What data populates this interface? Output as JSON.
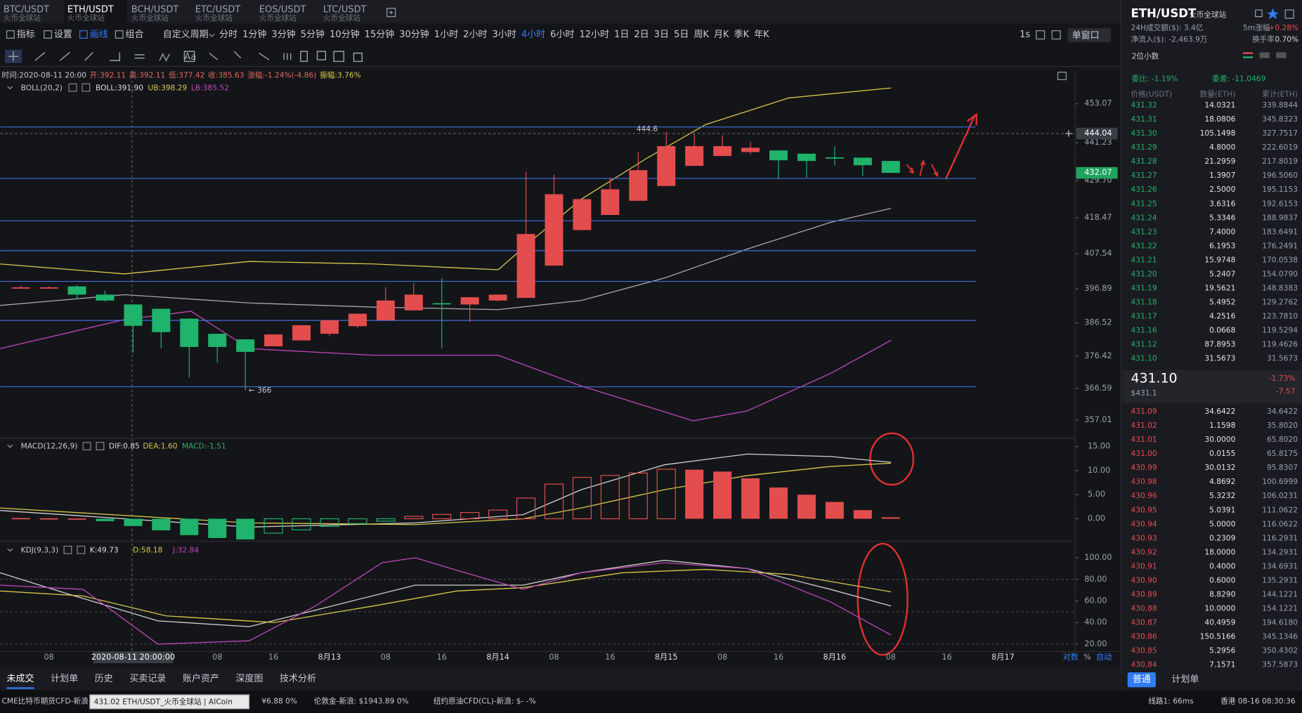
{
  "tabs": [
    {
      "pair": "BTC/USDT",
      "exchange": "火币全球站"
    },
    {
      "pair": "ETH/USDT",
      "exchange": "火币全球站"
    },
    {
      "pair": "BCH/USDT",
      "exchange": "火币全球站"
    },
    {
      "pair": "ETC/USDT",
      "exchange": "火币全球站"
    },
    {
      "pair": "EOS/USDT",
      "exchange": "火币全球站"
    },
    {
      "pair": "LTC/USDT",
      "exchange": "火币全球站"
    }
  ],
  "active_tab": 1,
  "toolbar": {
    "tools": [
      "指标",
      "设置",
      "画线",
      "组合"
    ],
    "custom": "自定义周期",
    "periods": [
      "分时",
      "1分钟",
      "3分钟",
      "5分钟",
      "10分钟",
      "15分钟",
      "30分钟",
      "1小时",
      "2小时",
      "3小时",
      "4小时",
      "6小时",
      "12小时",
      "1日",
      "2日",
      "3日",
      "5日",
      "周K",
      "月K",
      "季K",
      "年K"
    ],
    "active_period": 10,
    "refresh": "1s",
    "window": "单窗口"
  },
  "info_line": [
    "时间:2020-08-11 20:00",
    "开:392.11",
    "高:392.11",
    "低:377.42",
    "收:385.63",
    "涨幅:-1.24%(-4.86)",
    "振幅:3.76%"
  ],
  "boll": {
    "name": "BOLL(20,2)",
    "boll": "BOLL:391.90",
    "ub": "UB:398.29",
    "lb": "LB:385.52"
  },
  "chart": {
    "type": "candlestick",
    "candles": [
      [
        397.2,
        397.8,
        396.8,
        397.3
      ],
      [
        397.2,
        397.6,
        396.9,
        397.3
      ],
      [
        397.6,
        398.0,
        394.0,
        395.1
      ],
      [
        395.1,
        396.3,
        393.0,
        393.3
      ],
      [
        392.11,
        392.11,
        377.42,
        385.63
      ],
      [
        390.8,
        390.8,
        378.7,
        383.7
      ],
      [
        387.8,
        387.8,
        369.9,
        379.2
      ],
      [
        383.2,
        383.2,
        374.4,
        379.2
      ],
      [
        381.5,
        381.5,
        366,
        377.7
      ],
      [
        379.4,
        383.0,
        379.4,
        383.0
      ],
      [
        381.2,
        385.8,
        381.2,
        385.8
      ],
      [
        383.2,
        387.3,
        382.5,
        387.3
      ],
      [
        385.5,
        389.3,
        385.0,
        389.3
      ],
      [
        387.3,
        397.3,
        387.3,
        393.3
      ],
      [
        390.3,
        398.6,
        390.3,
        395.1
      ],
      [
        392.5,
        400.1,
        378.7,
        392.3
      ],
      [
        392.1,
        394.3,
        386.8,
        394.3
      ],
      [
        393.3,
        395.1,
        393.0,
        395.1
      ],
      [
        394.1,
        432.4,
        394.1,
        413.5
      ],
      [
        403.9,
        431.6,
        403.9,
        425.6
      ],
      [
        414.7,
        424.1,
        414.7,
        424.1
      ],
      [
        419.3,
        430.6,
        419.3,
        427.1
      ],
      [
        423.6,
        438.4,
        423.6,
        432.9
      ],
      [
        428.1,
        444.6,
        428.1,
        440.2
      ],
      [
        434.2,
        444.2,
        434.2,
        440.2
      ],
      [
        437.2,
        443.5,
        437.2,
        440.2
      ],
      [
        438.4,
        441.5,
        437.7,
        439.7
      ],
      [
        438.9,
        438.9,
        430.1,
        435.9
      ],
      [
        437.9,
        437.9,
        430.6,
        435.7
      ],
      [
        436.8,
        440.2,
        434.4,
        436.7
      ],
      [
        436.7,
        436.7,
        431.1,
        434.4
      ],
      [
        435.7,
        435.7,
        432.1,
        432.07
      ]
    ],
    "categories": [
      null,
      "08",
      null,
      null,
      "2020-08-11 20:00:00",
      null,
      null,
      "08",
      null,
      "16",
      null,
      "8月13",
      null,
      "08",
      null,
      "16",
      null,
      "8月14",
      null,
      "08",
      null,
      "16",
      null,
      "8月15",
      null,
      "08",
      null,
      "16",
      null,
      "8月16",
      null,
      "08",
      null,
      "16",
      null,
      "8月17"
    ],
    "crosshair_index": 4,
    "ylim": [
      351.46,
      463.16
    ],
    "yticks": [
      453.07,
      441.23,
      {
        "value": 429.7,
        "label": "429.70"
      },
      418.47,
      407.54,
      396.89,
      386.52,
      376.42,
      366.59,
      357.01
    ],
    "price_marks": [
      {
        "value": 444.04,
        "color": "#3a3d44"
      },
      {
        "value": 432.07,
        "color": "#1fa35f"
      }
    ],
    "horizontal_lines": [
      446.01,
      430.38,
      417.52,
      408.44,
      399.12,
      387.26,
      367.1
    ],
    "annotations": [
      {
        "value": 444.6,
        "label": "444.6"
      },
      {
        "value": 366,
        "label": "← 366"
      }
    ],
    "axis_options": [
      "对数",
      "%",
      "自动"
    ]
  },
  "macd": {
    "name": "MACD(12,26,9)",
    "dif": "DIF:0.85",
    "dea": "DEA:1.60",
    "macd": "MACD:-1.51",
    "ylim": [
      -4.66,
      16.38
    ],
    "yticks": [
      {
        "value": 15,
        "label": "15.00"
      },
      {
        "value": 10,
        "label": "10.00"
      },
      {
        "value": 5,
        "label": "5.00"
      },
      {
        "value": 0,
        "label": "0.00"
      }
    ],
    "histogram": [
      0.15,
      0.1,
      0.05,
      -0.5,
      -1.51,
      -2.4,
      -3.4,
      -4.0,
      -4.3,
      -3.0,
      -2.3,
      -1.6,
      -1.0,
      -0.5,
      0.5,
      0.9,
      1.3,
      1.8,
      4.3,
      7.2,
      8.6,
      9.0,
      9.5,
      10.3,
      10.2,
      9.8,
      8.4,
      6.5,
      5.0,
      3.5,
      1.8,
      0.3
    ]
  },
  "kdj": {
    "name": "KDJ(9,3,3)",
    "k": "K:49.73",
    "d": "D:58.18",
    "j": "J:32.84",
    "ylim": [
      13.1,
      113.1
    ],
    "yticks": [
      {
        "value": 100,
        "label": "100.00"
      },
      {
        "value": 80,
        "label": "80.00"
      },
      {
        "value": 60,
        "label": "60.00"
      },
      {
        "value": 40,
        "label": "40.00"
      },
      {
        "value": 20,
        "label": "20.00"
      }
    ]
  },
  "sidebar": {
    "pair": "ETH/USDT",
    "exchange": "火币全球站",
    "volume": "24H成交额($): 3.4亿",
    "change_label": "5m涨幅",
    "change": "+0.28%",
    "inflow": "净流入($): -2,463.9万",
    "turnover_label": "换手率",
    "turnover": "0.70%",
    "decimals": "2位小数",
    "ratio": "委比: -1.19%",
    "diff": "委差: -11.0469",
    "headers": [
      "价格(USDT)",
      "数量(ETH)",
      "累计(ETH)"
    ],
    "upper_rows": [
      [
        "431.32",
        "14.0321",
        "339.8844"
      ],
      [
        "431.31",
        "18.0806",
        "345.8323"
      ],
      [
        "431.30",
        "105.1498",
        "327.7517"
      ],
      [
        "431.29",
        "4.8000",
        "222.6019"
      ],
      [
        "431.28",
        "21.2959",
        "217.8019"
      ],
      [
        "431.27",
        "1.3907",
        "196.5060"
      ],
      [
        "431.26",
        "2.5000",
        "195.1153"
      ],
      [
        "431.25",
        "3.6316",
        "192.6153"
      ],
      [
        "431.24",
        "5.3346",
        "188.9837"
      ],
      [
        "431.23",
        "7.4000",
        "183.6491"
      ],
      [
        "431.22",
        "6.1953",
        "176.2491"
      ],
      [
        "431.21",
        "15.9748",
        "170.0538"
      ],
      [
        "431.20",
        "5.2407",
        "154.0790"
      ],
      [
        "431.19",
        "19.5621",
        "148.8383"
      ],
      [
        "431.18",
        "5.4952",
        "129.2762"
      ],
      [
        "431.17",
        "4.2516",
        "123.7810"
      ],
      [
        "431.16",
        "0.0668",
        "119.5294"
      ],
      [
        "431.12",
        "87.8953",
        "119.4626"
      ],
      [
        "431.10",
        "31.5673",
        "31.5673"
      ]
    ],
    "last_price": "431.10",
    "last_usd": "$431.1",
    "last_change": "-1.73%",
    "last_diff": "-7.57",
    "lower_rows": [
      [
        "431.09",
        "34.6422",
        "34.6422"
      ],
      [
        "431.02",
        "1.1598",
        "35.8020"
      ],
      [
        "431.01",
        "30.0000",
        "65.8020"
      ],
      [
        "431.00",
        "0.0155",
        "65.8175"
      ],
      [
        "430.99",
        "30.0132",
        "95.8307"
      ],
      [
        "430.98",
        "4.8692",
        "100.6999"
      ],
      [
        "430.96",
        "5.3232",
        "106.0231"
      ],
      [
        "430.95",
        "5.0391",
        "111.0622"
      ],
      [
        "430.94",
        "5.0000",
        "116.0622"
      ],
      [
        "430.93",
        "0.2309",
        "116.2931"
      ],
      [
        "430.92",
        "18.0000",
        "134.2931"
      ],
      [
        "430.91",
        "0.4000",
        "134.6931"
      ],
      [
        "430.90",
        "0.6000",
        "135.2931"
      ],
      [
        "430.89",
        "8.8290",
        "144.1221"
      ],
      [
        "430.88",
        "10.0000",
        "154.1221"
      ],
      [
        "430.87",
        "40.4959",
        "194.6180"
      ],
      [
        "430.86",
        "150.5166",
        "345.1346"
      ],
      [
        "430.85",
        "5.2956",
        "350.4302"
      ],
      [
        "430.84",
        "7.1571",
        "357.5873"
      ]
    ],
    "order_tabs": [
      "普通",
      "计划单"
    ]
  },
  "bottom_tabs": [
    "未成交",
    "计划单",
    "历史",
    "买卖记录",
    "账户资产",
    "深度图",
    "技术分析"
  ],
  "status": {
    "ticker": "CME比特币期货CFD-新浪",
    "tooltip": "431.02 ETH/USDT_火币全球站 | AICoin",
    "cny": "¥6.88 0%",
    "gold": "伦敦金-新浪: $1943.89 0%",
    "oil": "纽约原油CFD(CL)-新浪: $- -%",
    "line": "线路1: 66ms",
    "time": "香港 08-16 08:30:36"
  }
}
